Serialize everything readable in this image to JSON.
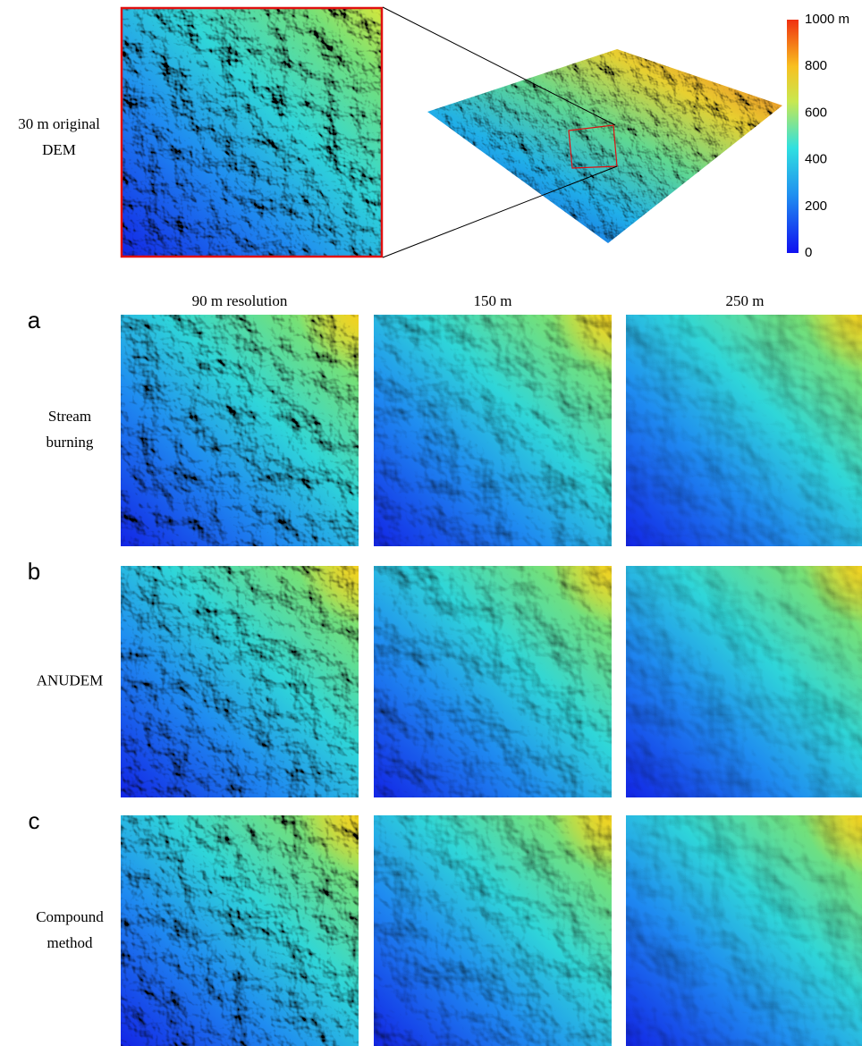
{
  "inset_label": [
    "30 m original",
    "DEM"
  ],
  "colorbar": {
    "lim": [
      0,
      1000
    ],
    "ticks": [
      0,
      200,
      400,
      600,
      800,
      {
        "value": 1000,
        "label": "1000 m"
      }
    ]
  },
  "column_headers": [
    "90 m resolution",
    "150 m",
    "250 m"
  ],
  "rows": [
    {
      "letter": "a",
      "label": [
        "Stream",
        "burning"
      ]
    },
    {
      "letter": "b",
      "label": [
        "ANUDEM"
      ]
    },
    {
      "letter": "c",
      "label": [
        "Compound",
        "method"
      ]
    }
  ]
}
